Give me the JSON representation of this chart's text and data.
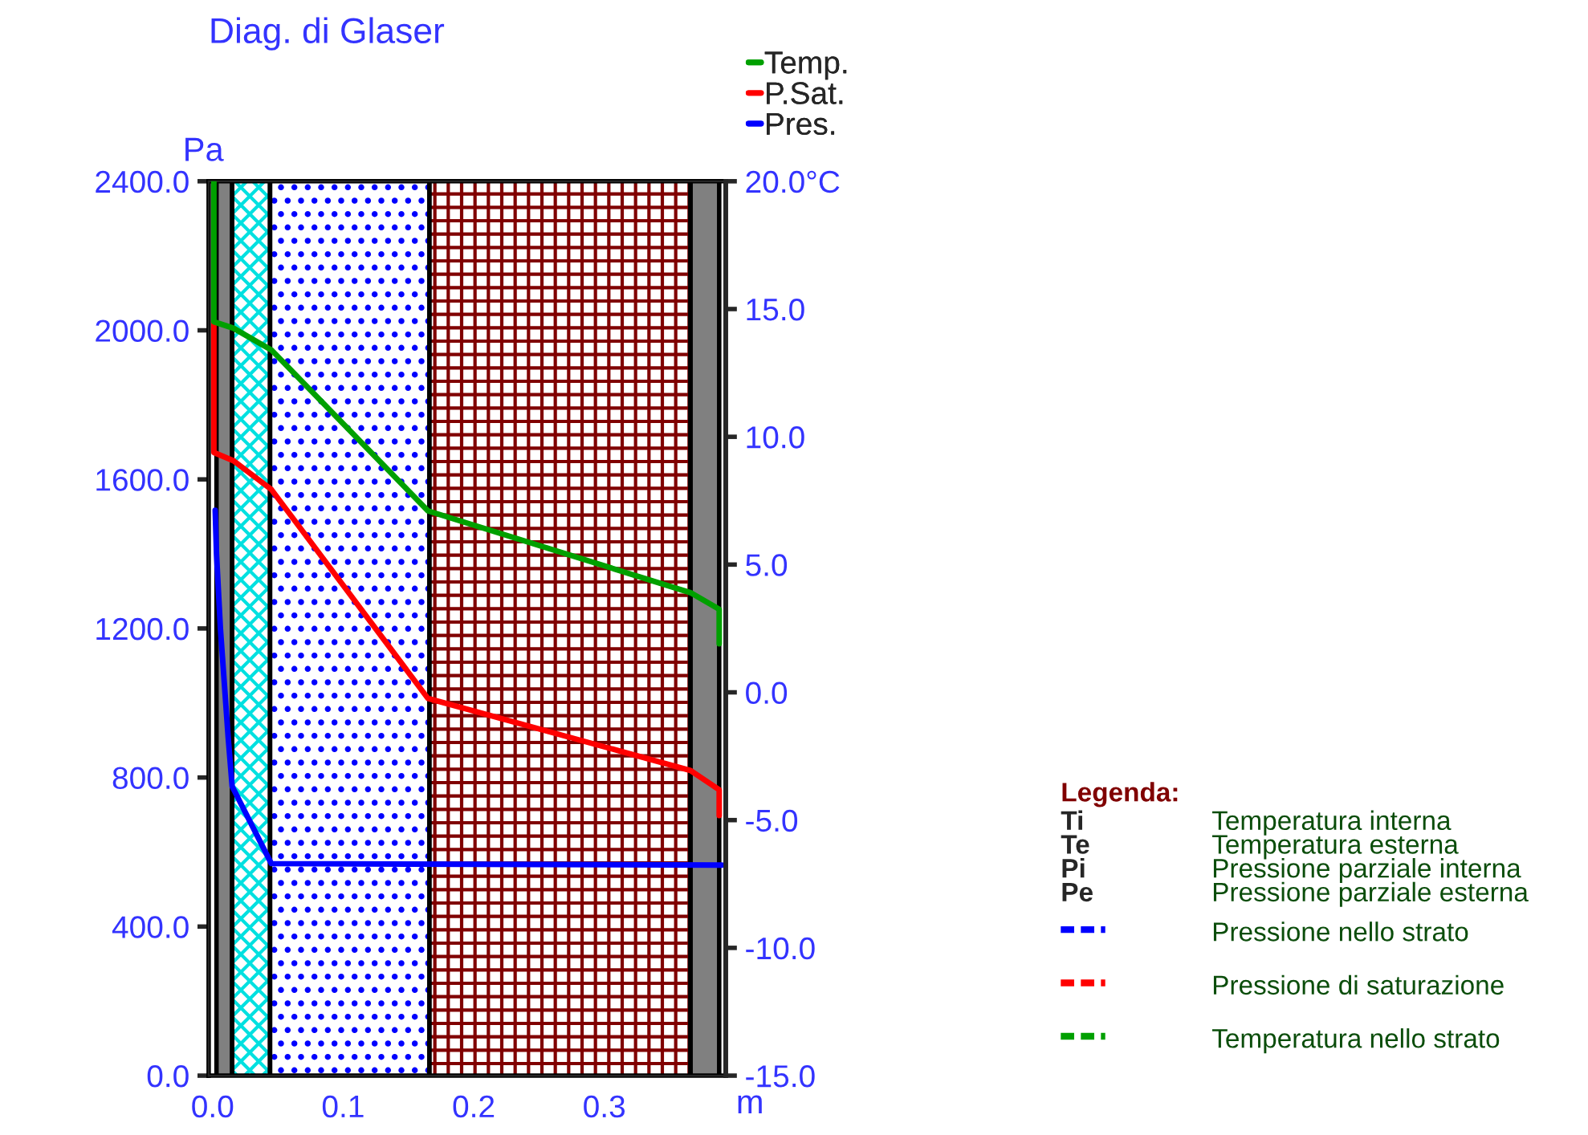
{
  "chart_data": {
    "type": "line",
    "title": "Diag. di Glaser",
    "xlabel": "m",
    "ylabel": "Pa",
    "xlim": [
      -0.003,
      0.393
    ],
    "xticks": [
      {
        "value": 0,
        "label": "0.0"
      },
      0.1,
      0.2,
      0.3
    ],
    "ylim": [
      0,
      2400
    ],
    "yticks": [
      {
        "value": 0,
        "label": "0.0"
      },
      {
        "value": 400,
        "label": "400.0"
      },
      {
        "value": 800,
        "label": "800.0"
      },
      {
        "value": 1200,
        "label": "1200.0"
      },
      {
        "value": 1600,
        "label": "1600.0"
      },
      {
        "value": 2000,
        "label": "2000.0"
      },
      {
        "value": 2400,
        "label": "2400.0"
      }
    ],
    "y2lim": [
      -15,
      20
    ],
    "y2ticks": [
      {
        "value": -15,
        "label": "-15.0"
      },
      {
        "value": -10,
        "label": "-10.0"
      },
      {
        "value": -5,
        "label": "-5.0"
      },
      {
        "value": 0,
        "label": "0.0"
      },
      {
        "value": 5,
        "label": "5.0"
      },
      {
        "value": 10,
        "label": "10.0"
      },
      {
        "value": 15,
        "label": "15.0"
      },
      {
        "value": 20,
        "label": "20.0°C"
      }
    ],
    "series": [
      {
        "name": "Temp.",
        "color": "#00a000",
        "axis": "y2",
        "x": [
          0.001,
          0.001,
          0.016,
          0.045,
          0.165,
          0.366,
          0.388,
          0.388
        ],
        "values": [
          20,
          14.5,
          14.25,
          13.4,
          7.1,
          3.9,
          3.25,
          1.9
        ]
      },
      {
        "name": "P.Sat.",
        "color": "#ff0000",
        "x": [
          0.001,
          0.001,
          0.016,
          0.045,
          0.165,
          0.366,
          0.388,
          0.388
        ],
        "values": [
          2025,
          1672,
          1650,
          1573,
          1012,
          819,
          767,
          698
        ]
      },
      {
        "name": "Pres.",
        "color": "#0000ff",
        "x": [
          0.002,
          0.003,
          0.006,
          0.012,
          0.015,
          0.045,
          0.39
        ],
        "values": [
          1517,
          1400,
          1200,
          905,
          776,
          569,
          565
        ]
      }
    ],
    "bands": [
      {
        "axis": "x",
        "from": 0.003,
        "to": 0.015,
        "color": "#808080"
      },
      {
        "axis": "x",
        "from": 0.015,
        "to": 0.044,
        "color": "#00e0e0"
      },
      {
        "axis": "x",
        "from": 0.044,
        "to": 0.166,
        "color": "#0000ff"
      },
      {
        "axis": "x",
        "from": 0.166,
        "to": 0.366,
        "color": "#800000"
      },
      {
        "axis": "x",
        "from": 0.366,
        "to": 0.388,
        "color": "#808080"
      }
    ],
    "legend": "top right",
    "grid": false,
    "marker": "none",
    "line_style": "solid",
    "annotations": [
      "Legenda:",
      "Ti",
      "Temperatura interna",
      "Te",
      "Temperatura esterna",
      "Pi",
      "Pressione parziale interna",
      "Pe",
      "Pressione parziale esterna",
      "Pressione nello strato",
      "Pressione di saturazione",
      "Temperatura nello strato"
    ]
  }
}
